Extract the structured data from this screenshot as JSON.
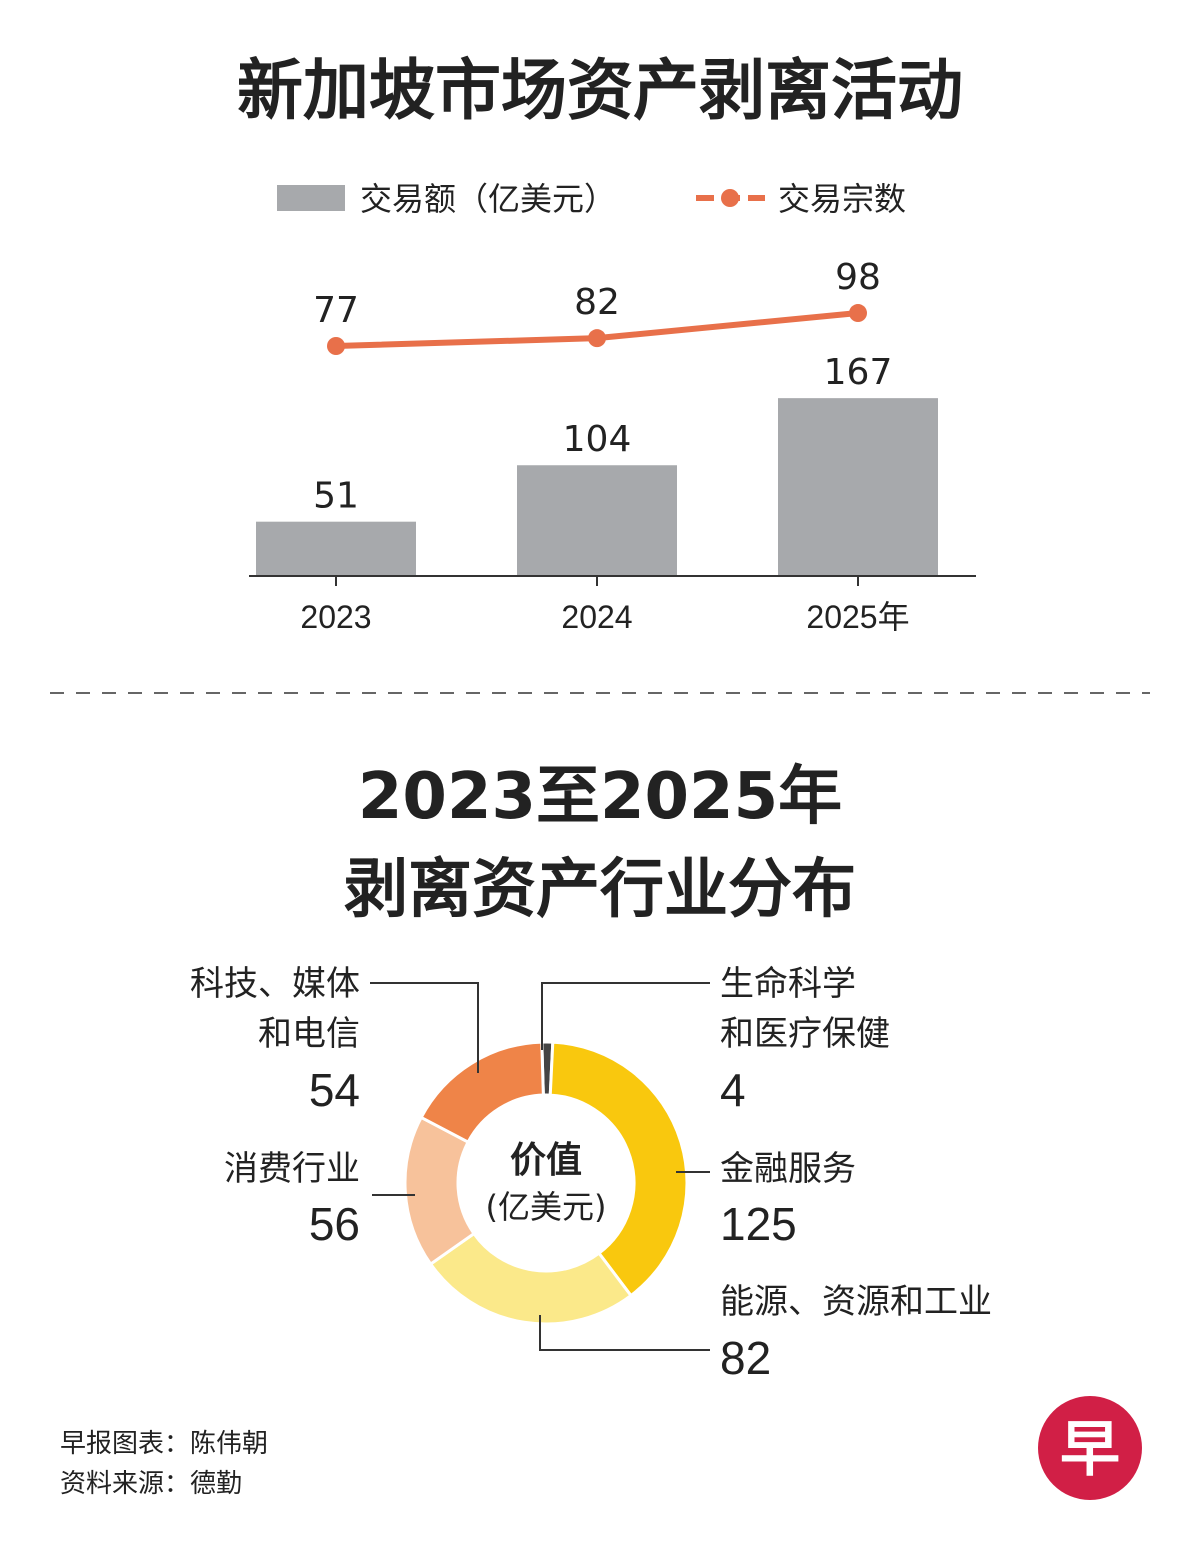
{
  "title": "新加坡市场资产剥离活动",
  "legend": {
    "bar": "交易额（亿美元）",
    "line": "交易宗数"
  },
  "section2_title": [
    "2023至2025年",
    "剥离资产行业分布"
  ],
  "donut_center": [
    "价值",
    "(亿美元)"
  ],
  "credits": [
    "早报图表：陈伟朝",
    "资料来源：德勤"
  ],
  "logo_char": "早",
  "colors": {
    "bar": "#a7a9ac",
    "line": "#e8704a",
    "logo": "#d11f46",
    "gold": "#f9c80e",
    "lightyellow": "#fbe98a",
    "peach": "#f7c29b",
    "orange": "#ef8448",
    "dark": "#444444"
  },
  "chart_data": [
    {
      "type": "bar",
      "title": "新加坡市场资产剥离活动",
      "categories": [
        "2023",
        "2024",
        "2025年"
      ],
      "series": [
        {
          "name": "交易额（亿美元）",
          "type": "bar",
          "values": [
            51,
            104,
            167
          ]
        },
        {
          "name": "交易宗数",
          "type": "line",
          "values": [
            77,
            82,
            98
          ]
        }
      ],
      "legend": "top"
    },
    {
      "type": "pie",
      "title": "2023至2025年 剥离资产行业分布",
      "center_label": "价值 (亿美元)",
      "slices": [
        {
          "label": [
            "生命科学",
            "和医疗保健"
          ],
          "value": 4,
          "color": "#444444"
        },
        {
          "label": [
            "金融服务"
          ],
          "value": 125,
          "color": "#f9c80e"
        },
        {
          "label": [
            "能源、资源和工业"
          ],
          "value": 82,
          "color": "#fbe98a"
        },
        {
          "label": [
            "消费行业"
          ],
          "value": 56,
          "color": "#f7c29b"
        },
        {
          "label": [
            "科技、媒体",
            "和电信"
          ],
          "value": 54,
          "color": "#ef8448"
        }
      ]
    }
  ]
}
